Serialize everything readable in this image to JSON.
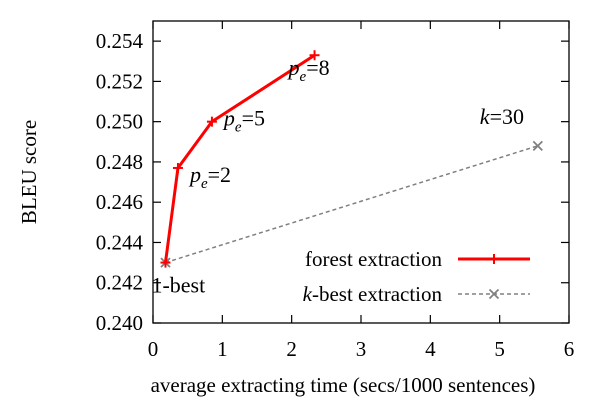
{
  "chart_data": {
    "type": "line",
    "title": "",
    "xlabel": "average extracting time (secs/1000 sentences)",
    "ylabel": "BLEU score",
    "xlim": [
      0,
      6
    ],
    "ylim": [
      0.24,
      0.255
    ],
    "xticks": [
      "0",
      "1",
      "2",
      "3",
      "4",
      "5",
      "6"
    ],
    "xtick_values": [
      0,
      1,
      2,
      3,
      4,
      5,
      6
    ],
    "yticks": [
      "0.240",
      "0.242",
      "0.244",
      "0.246",
      "0.248",
      "0.250",
      "0.252",
      "0.254"
    ],
    "ytick_values": [
      0.24,
      0.242,
      0.244,
      0.246,
      0.248,
      0.25,
      0.252,
      0.254
    ],
    "legend_position": "bottom-right",
    "series": [
      {
        "name": "forest extraction",
        "color": "#ff0000",
        "style": "solid",
        "marker": "plus",
        "points": [
          {
            "x": 0.18,
            "y": 0.243
          },
          {
            "x": 0.36,
            "y": 0.2477
          },
          {
            "x": 0.85,
            "y": 0.25
          },
          {
            "x": 2.33,
            "y": 0.2533
          }
        ]
      },
      {
        "name": "k-best extraction",
        "color": "#808080",
        "style": "dashed",
        "marker": "cross",
        "points": [
          {
            "x": 0.18,
            "y": 0.243
          },
          {
            "x": 5.55,
            "y": 0.2488
          }
        ]
      }
    ],
    "annotations": [
      {
        "base": "p",
        "sub": "e",
        "rest": "=2",
        "x": 0.36,
        "y": 0.2477
      },
      {
        "base": "p",
        "sub": "e",
        "rest": "=5",
        "x": 0.85,
        "y": 0.25
      },
      {
        "base": "p",
        "sub": "e",
        "rest": "=8",
        "x": 2.33,
        "y": 0.2533
      },
      {
        "text": "1-best",
        "x": 0.18,
        "y": 0.243
      },
      {
        "italic": "k",
        "rest": "=30",
        "x": 5.55,
        "y": 0.2488
      }
    ]
  }
}
